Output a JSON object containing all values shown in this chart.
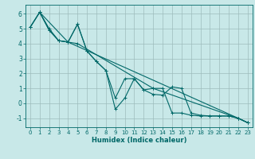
{
  "xlabel": "Humidex (Indice chaleur)",
  "bg_color": "#c8e8e8",
  "grid_color": "#b0cecece",
  "line_color": "#006868",
  "xlim": [
    -0.5,
    23.5
  ],
  "ylim": [
    -1.6,
    6.6
  ],
  "xticks": [
    0,
    1,
    2,
    3,
    4,
    5,
    6,
    7,
    8,
    9,
    10,
    11,
    12,
    13,
    14,
    15,
    16,
    17,
    18,
    19,
    20,
    21,
    22,
    23
  ],
  "yticks": [
    -1,
    0,
    1,
    2,
    3,
    4,
    5,
    6
  ],
  "lines": [
    {
      "x": [
        0,
        1,
        2,
        3,
        4,
        5,
        6,
        7,
        8,
        9,
        10,
        11,
        12,
        13,
        14,
        15,
        16,
        17,
        18,
        19,
        20,
        21,
        22,
        23
      ],
      "y": [
        5.1,
        6.1,
        4.9,
        4.2,
        4.1,
        5.3,
        3.5,
        2.8,
        2.2,
        -0.4,
        0.35,
        1.65,
        0.9,
        0.6,
        0.55,
        1.1,
        1.0,
        -0.65,
        -0.8,
        -0.85,
        -0.85,
        -0.85,
        -1.0,
        -1.3
      ]
    },
    {
      "x": [
        0,
        1,
        2,
        3,
        4,
        5,
        13,
        14,
        15,
        16,
        17,
        18,
        19,
        20,
        21,
        22,
        23
      ],
      "y": [
        5.1,
        6.1,
        4.9,
        4.2,
        4.1,
        4.0,
        1.0,
        1.0,
        -0.65,
        -0.65,
        -0.8,
        -0.85,
        -0.85,
        -0.85,
        -0.85,
        -1.0,
        -1.3
      ]
    },
    {
      "x": [
        1,
        2,
        3,
        4,
        5,
        6,
        7,
        8,
        9,
        10,
        11,
        12,
        13,
        22,
        23
      ],
      "y": [
        6.1,
        5.0,
        4.2,
        4.1,
        5.3,
        3.5,
        2.8,
        2.2,
        0.35,
        1.65,
        1.65,
        0.9,
        1.0,
        -1.0,
        -1.3
      ]
    },
    {
      "x": [
        0,
        1,
        4,
        22,
        23
      ],
      "y": [
        5.1,
        6.1,
        4.1,
        -1.0,
        -1.3
      ]
    }
  ]
}
